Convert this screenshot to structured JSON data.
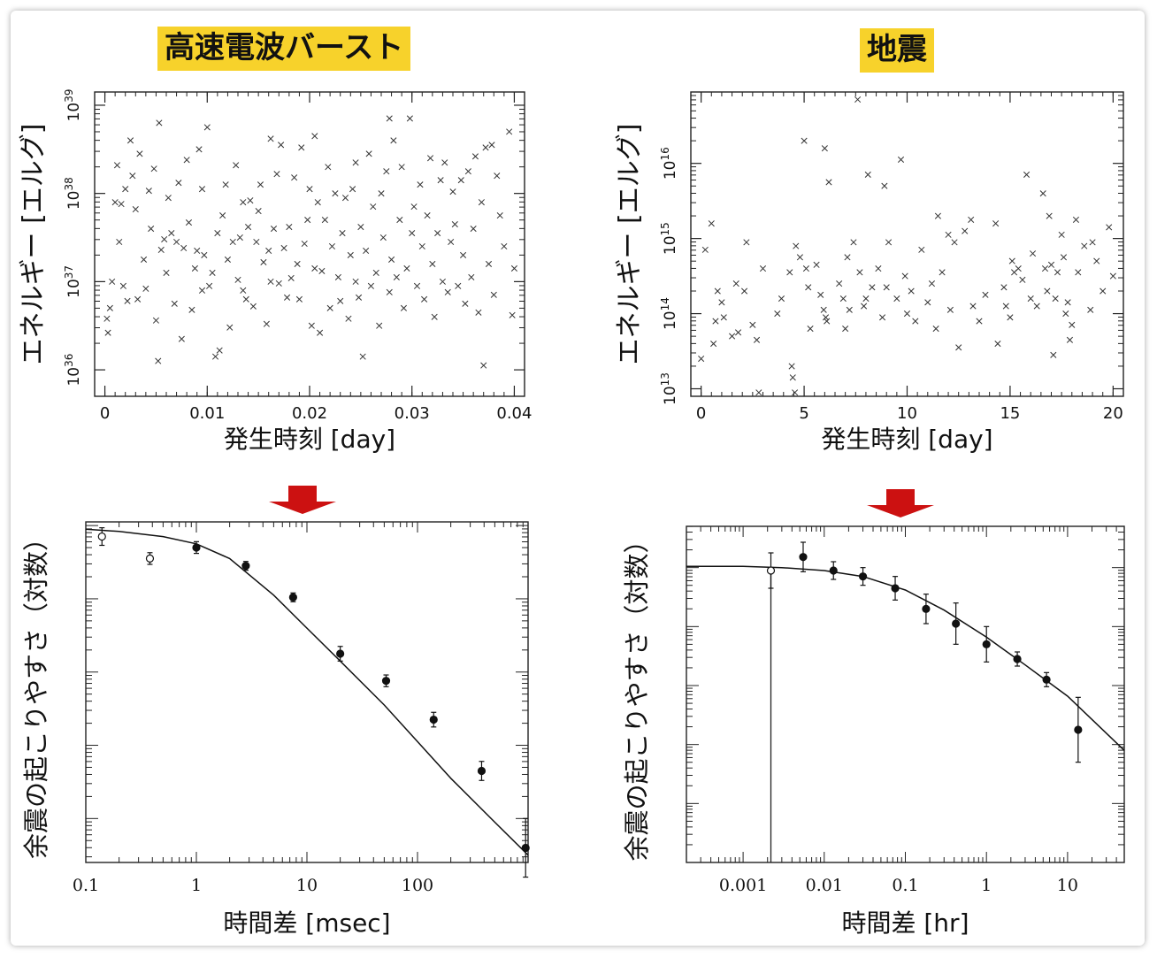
{
  "colors": {
    "highlight": "#f7d22b",
    "arrow": "#cc1111",
    "ink": "#222222"
  },
  "labels": {
    "frb_title": "高速電波バースト",
    "quake_title": "地震"
  },
  "chart_data": [
    {
      "type": "scatter",
      "id": "frb-energy",
      "title": "",
      "xlabel": "発生時刻 [day]",
      "ylabel": "エネルギー [エルグ]",
      "xlim": [
        -0.001,
        0.041
      ],
      "ylim": [
        35.7,
        39.15
      ],
      "yscale": "log",
      "xticks": [
        "0",
        "0.01",
        "0.02",
        "0.03",
        "0.04"
      ],
      "yticks": [
        "1036",
        "1037",
        "1038",
        "1039"
      ],
      "marker": "x",
      "points": [
        [
          0.0002,
          36.58
        ],
        [
          0.0003,
          36.42
        ],
        [
          0.0005,
          36.7
        ],
        [
          0.0007,
          37.0
        ],
        [
          0.001,
          37.9
        ],
        [
          0.0012,
          38.32
        ],
        [
          0.0014,
          37.45
        ],
        [
          0.0016,
          37.88
        ],
        [
          0.0018,
          36.95
        ],
        [
          0.002,
          38.05
        ],
        [
          0.0022,
          36.78
        ],
        [
          0.0025,
          38.6
        ],
        [
          0.0027,
          38.2
        ],
        [
          0.003,
          37.82
        ],
        [
          0.0032,
          36.8
        ],
        [
          0.0034,
          38.45
        ],
        [
          0.0038,
          37.25
        ],
        [
          0.004,
          36.92
        ],
        [
          0.0043,
          38.03
        ],
        [
          0.0045,
          37.6
        ],
        [
          0.0048,
          38.28
        ],
        [
          0.005,
          36.56
        ],
        [
          0.0052,
          36.1
        ],
        [
          0.0055,
          37.36
        ],
        [
          0.0058,
          37.48
        ],
        [
          0.006,
          37.1
        ],
        [
          0.0062,
          37.95
        ],
        [
          0.0065,
          37.55
        ],
        [
          0.0068,
          36.75
        ],
        [
          0.007,
          37.45
        ],
        [
          0.0072,
          38.12
        ],
        [
          0.0075,
          36.35
        ],
        [
          0.0077,
          37.38
        ],
        [
          0.008,
          38.38
        ],
        [
          0.0082,
          37.67
        ],
        [
          0.0085,
          36.68
        ],
        [
          0.0088,
          37.15
        ],
        [
          0.009,
          37.35
        ],
        [
          0.0092,
          38.5
        ],
        [
          0.0095,
          36.9
        ],
        [
          0.0097,
          37.3
        ],
        [
          0.01,
          38.75
        ],
        [
          0.0102,
          36.95
        ],
        [
          0.0105,
          37.1
        ],
        [
          0.0108,
          36.15
        ],
        [
          0.011,
          37.55
        ],
        [
          0.0112,
          36.22
        ],
        [
          0.0115,
          37.75
        ],
        [
          0.0118,
          38.1
        ],
        [
          0.012,
          37.25
        ],
        [
          0.0122,
          36.48
        ],
        [
          0.0125,
          37.45
        ],
        [
          0.0128,
          38.32
        ],
        [
          0.013,
          37.02
        ],
        [
          0.0132,
          37.5
        ],
        [
          0.0135,
          36.9
        ],
        [
          0.0138,
          36.8
        ],
        [
          0.014,
          37.62
        ],
        [
          0.0142,
          37.92
        ],
        [
          0.0145,
          36.72
        ],
        [
          0.0148,
          37.45
        ],
        [
          0.015,
          37.8
        ],
        [
          0.0152,
          38.1
        ],
        [
          0.0155,
          37.22
        ],
        [
          0.0158,
          36.52
        ],
        [
          0.016,
          37.35
        ],
        [
          0.0162,
          37.0
        ],
        [
          0.0165,
          37.6
        ],
        [
          0.0168,
          38.22
        ],
        [
          0.017,
          36.98
        ],
        [
          0.0172,
          38.55
        ],
        [
          0.0175,
          37.38
        ],
        [
          0.0178,
          36.82
        ],
        [
          0.018,
          37.62
        ],
        [
          0.0182,
          37.04
        ],
        [
          0.0185,
          38.18
        ],
        [
          0.0188,
          37.2
        ],
        [
          0.019,
          36.8
        ],
        [
          0.0192,
          38.52
        ],
        [
          0.0195,
          37.43
        ],
        [
          0.0198,
          37.7
        ],
        [
          0.02,
          38.05
        ],
        [
          0.0202,
          36.5
        ],
        [
          0.0205,
          37.15
        ],
        [
          0.0208,
          37.9
        ],
        [
          0.021,
          36.42
        ],
        [
          0.0212,
          37.12
        ],
        [
          0.0215,
          37.7
        ],
        [
          0.0218,
          38.3
        ],
        [
          0.022,
          36.7
        ],
        [
          0.0222,
          37.4
        ],
        [
          0.0225,
          38.0
        ],
        [
          0.0228,
          37.05
        ],
        [
          0.023,
          36.78
        ],
        [
          0.0232,
          37.55
        ],
        [
          0.0235,
          37.95
        ],
        [
          0.0238,
          36.58
        ],
        [
          0.024,
          37.3
        ],
        [
          0.0242,
          38.05
        ],
        [
          0.0245,
          37.0
        ],
        [
          0.0248,
          36.82
        ],
        [
          0.025,
          37.62
        ],
        [
          0.0252,
          36.15
        ],
        [
          0.0255,
          37.35
        ],
        [
          0.0258,
          38.45
        ],
        [
          0.026,
          36.95
        ],
        [
          0.0262,
          37.85
        ],
        [
          0.0265,
          37.1
        ],
        [
          0.0268,
          36.5
        ],
        [
          0.027,
          38.0
        ],
        [
          0.0272,
          37.5
        ],
        [
          0.0275,
          38.25
        ],
        [
          0.0278,
          36.88
        ],
        [
          0.028,
          37.25
        ],
        [
          0.0282,
          38.6
        ],
        [
          0.0285,
          37.05
        ],
        [
          0.0288,
          37.7
        ],
        [
          0.029,
          38.3
        ],
        [
          0.0292,
          36.7
        ],
        [
          0.0295,
          37.15
        ],
        [
          0.0298,
          38.85
        ],
        [
          0.03,
          37.55
        ],
        [
          0.0302,
          37.85
        ],
        [
          0.0305,
          36.95
        ],
        [
          0.0308,
          38.1
        ],
        [
          0.031,
          37.4
        ],
        [
          0.0312,
          36.8
        ],
        [
          0.0315,
          37.75
        ],
        [
          0.0318,
          38.4
        ],
        [
          0.032,
          37.2
        ],
        [
          0.0322,
          36.6
        ],
        [
          0.0325,
          37.55
        ],
        [
          0.0328,
          38.15
        ],
        [
          0.033,
          37.0
        ],
        [
          0.0332,
          38.35
        ],
        [
          0.0335,
          36.88
        ],
        [
          0.0338,
          37.45
        ],
        [
          0.034,
          38.02
        ],
        [
          0.0342,
          37.65
        ],
        [
          0.0345,
          36.95
        ],
        [
          0.0348,
          38.15
        ],
        [
          0.035,
          37.3
        ],
        [
          0.0352,
          36.75
        ],
        [
          0.0355,
          38.25
        ],
        [
          0.0358,
          37.05
        ],
        [
          0.036,
          37.6
        ],
        [
          0.0362,
          38.42
        ],
        [
          0.0365,
          36.65
        ],
        [
          0.0368,
          37.9
        ],
        [
          0.037,
          36.05
        ],
        [
          0.0372,
          38.52
        ],
        [
          0.0375,
          37.2
        ],
        [
          0.0378,
          38.55
        ],
        [
          0.038,
          36.85
        ],
        [
          0.0383,
          38.2
        ],
        [
          0.0386,
          37.75
        ],
        [
          0.039,
          37.4
        ],
        [
          0.0395,
          38.7
        ],
        [
          0.0398,
          36.62
        ],
        [
          0.04,
          37.15
        ],
        [
          0.0095,
          38.05
        ],
        [
          0.0135,
          37.9
        ],
        [
          0.0205,
          38.65
        ],
        [
          0.0245,
          38.35
        ],
        [
          0.0278,
          38.85
        ],
        [
          0.0162,
          38.62
        ],
        [
          0.0053,
          38.8
        ]
      ]
    },
    {
      "type": "scatter",
      "id": "quake-energy",
      "title": "",
      "xlabel": "発生時刻 [day]",
      "ylabel": "エネルギー [エルグ]",
      "xlim": [
        -0.5,
        20.5
      ],
      "ylim": [
        12.9,
        16.95
      ],
      "yscale": "log",
      "xticks": [
        "0",
        "5",
        "10",
        "15",
        "20"
      ],
      "yticks": [
        "1013",
        "1014",
        "1015",
        "1016"
      ],
      "marker": "x",
      "points": [
        [
          0.0,
          13.4
        ],
        [
          0.2,
          14.85
        ],
        [
          0.5,
          15.2
        ],
        [
          0.6,
          13.6
        ],
        [
          0.7,
          13.9
        ],
        [
          0.8,
          14.3
        ],
        [
          1.0,
          14.15
        ],
        [
          1.1,
          13.95
        ],
        [
          1.7,
          14.4
        ],
        [
          1.8,
          13.75
        ],
        [
          2.1,
          14.3
        ],
        [
          2.2,
          14.95
        ],
        [
          2.5,
          13.85
        ],
        [
          2.7,
          13.65
        ],
        [
          2.8,
          12.95
        ],
        [
          3.7,
          14.0
        ],
        [
          3.9,
          14.2
        ],
        [
          4.3,
          14.55
        ],
        [
          4.4,
          13.3
        ],
        [
          4.45,
          13.15
        ],
        [
          4.55,
          12.95
        ],
        [
          4.6,
          14.9
        ],
        [
          5.0,
          16.3
        ],
        [
          5.1,
          14.6
        ],
        [
          5.2,
          14.35
        ],
        [
          5.3,
          13.8
        ],
        [
          5.6,
          14.65
        ],
        [
          5.8,
          14.25
        ],
        [
          5.95,
          14.05
        ],
        [
          6.0,
          16.2
        ],
        [
          6.05,
          13.95
        ],
        [
          6.1,
          13.9
        ],
        [
          6.2,
          15.75
        ],
        [
          6.7,
          14.4
        ],
        [
          6.9,
          14.2
        ],
        [
          7.0,
          13.8
        ],
        [
          7.2,
          14.05
        ],
        [
          7.4,
          14.95
        ],
        [
          7.6,
          16.85
        ],
        [
          7.7,
          14.55
        ],
        [
          7.9,
          14.1
        ],
        [
          8.0,
          14.2
        ],
        [
          8.1,
          15.85
        ],
        [
          8.3,
          14.35
        ],
        [
          8.6,
          14.6
        ],
        [
          8.8,
          13.95
        ],
        [
          8.9,
          15.7
        ],
        [
          9.0,
          14.35
        ],
        [
          9.1,
          14.95
        ],
        [
          9.5,
          14.2
        ],
        [
          9.7,
          16.05
        ],
        [
          9.9,
          14.5
        ],
        [
          10.2,
          14.3
        ],
        [
          10.4,
          13.9
        ],
        [
          10.7,
          14.85
        ],
        [
          11.0,
          14.15
        ],
        [
          11.2,
          14.4
        ],
        [
          11.4,
          13.8
        ],
        [
          11.5,
          15.3
        ],
        [
          11.7,
          14.55
        ],
        [
          12.1,
          14.05
        ],
        [
          12.3,
          14.95
        ],
        [
          12.5,
          13.55
        ],
        [
          12.8,
          15.1
        ],
        [
          13.1,
          15.25
        ],
        [
          13.5,
          13.9
        ],
        [
          13.8,
          14.25
        ],
        [
          14.3,
          15.2
        ],
        [
          14.4,
          13.6
        ],
        [
          14.7,
          14.35
        ],
        [
          14.8,
          14.1
        ],
        [
          15.0,
          13.95
        ],
        [
          15.1,
          14.7
        ],
        [
          15.2,
          14.55
        ],
        [
          15.4,
          14.6
        ],
        [
          15.6,
          14.45
        ],
        [
          15.8,
          15.85
        ],
        [
          16.1,
          14.8
        ],
        [
          16.3,
          14.1
        ],
        [
          16.6,
          15.6
        ],
        [
          16.7,
          14.6
        ],
        [
          16.8,
          14.3
        ],
        [
          16.9,
          15.3
        ],
        [
          17.0,
          14.65
        ],
        [
          17.2,
          14.2
        ],
        [
          17.3,
          14.55
        ],
        [
          17.5,
          15.05
        ],
        [
          17.6,
          14.75
        ],
        [
          17.7,
          14.0
        ],
        [
          17.8,
          14.15
        ],
        [
          17.9,
          13.65
        ],
        [
          18.0,
          13.85
        ],
        [
          18.2,
          15.25
        ],
        [
          18.3,
          14.55
        ],
        [
          18.6,
          14.9
        ],
        [
          18.9,
          14.05
        ],
        [
          19.2,
          14.7
        ],
        [
          19.5,
          14.3
        ],
        [
          19.8,
          15.15
        ],
        [
          20.0,
          14.5
        ],
        [
          1.5,
          13.7
        ],
        [
          3.0,
          14.6
        ],
        [
          10.0,
          14.0
        ],
        [
          12.0,
          15.05
        ],
        [
          16.0,
          14.2
        ],
        [
          17.1,
          13.45
        ],
        [
          13.2,
          14.1
        ],
        [
          7.1,
          14.75
        ],
        [
          19.0,
          14.95
        ],
        [
          4.8,
          14.75
        ]
      ]
    },
    {
      "type": "line",
      "id": "frb-aftershock",
      "title": "",
      "xlabel": "時間差 [msec]",
      "ylabel": "余震の起こりやすさ（対数）",
      "xscale": "log",
      "xlim": [
        0.1,
        1000
      ],
      "ylim": [
        -4.6,
        0.05
      ],
      "xticks": [
        "0.1",
        "1",
        "10",
        "100"
      ],
      "series": [
        {
          "kind": "fit",
          "x": [
            0.1,
            0.2,
            0.5,
            1,
            2,
            5,
            10,
            20,
            50,
            100,
            200,
            500,
            1000
          ],
          "y": [
            -0.05,
            -0.08,
            -0.15,
            -0.25,
            -0.45,
            -0.95,
            -1.4,
            -1.85,
            -2.45,
            -2.95,
            -3.45,
            -4.05,
            -4.5
          ]
        },
        {
          "kind": "open",
          "x": [
            0.14,
            0.38
          ],
          "y": [
            -0.15,
            -0.45
          ],
          "err": [
            0.12,
            0.08
          ]
        },
        {
          "kind": "filled",
          "x": [
            1.0,
            2.8,
            7.5,
            20,
            52,
            140,
            380,
            950
          ],
          "y": [
            -0.3,
            -0.55,
            -0.98,
            -1.75,
            -2.12,
            -2.65,
            -3.35,
            -4.4
          ],
          "err": [
            0.08,
            0.06,
            0.06,
            0.1,
            0.08,
            0.1,
            0.13,
            0.4
          ]
        }
      ]
    },
    {
      "type": "line",
      "id": "quake-aftershock",
      "title": "",
      "xlabel": "時間差 [hr]",
      "ylabel": "余震の起こりやすさ（対数）",
      "xscale": "log",
      "xlim": [
        0.0002,
        50
      ],
      "ylim": [
        -5.0,
        0.7
      ],
      "xticks": [
        "0.001",
        "0.01",
        "0.1",
        "1",
        "10"
      ],
      "series": [
        {
          "kind": "fit",
          "x": [
            0.0002,
            0.001,
            0.003,
            0.01,
            0.03,
            0.1,
            0.3,
            1,
            3,
            10,
            50
          ],
          "y": [
            0.02,
            0.02,
            0.0,
            -0.05,
            -0.15,
            -0.38,
            -0.72,
            -1.18,
            -1.65,
            -2.18,
            -3.1
          ]
        },
        {
          "kind": "open",
          "x": [
            0.0022
          ],
          "y": [
            -0.05
          ],
          "err": [
            0.3
          ]
        },
        {
          "kind": "filled",
          "x": [
            0.0055,
            0.013,
            0.03,
            0.075,
            0.18,
            0.42,
            1.0,
            2.4,
            5.5,
            13.5
          ],
          "y": [
            0.18,
            -0.05,
            -0.15,
            -0.35,
            -0.7,
            -0.95,
            -1.3,
            -1.55,
            -1.9,
            -2.75
          ],
          "err": [
            0.25,
            0.15,
            0.15,
            0.2,
            0.25,
            0.35,
            0.3,
            0.12,
            0.12,
            0.55
          ]
        }
      ],
      "extra_line": {
        "x": 0.0022,
        "y_to": -5.0
      }
    }
  ]
}
